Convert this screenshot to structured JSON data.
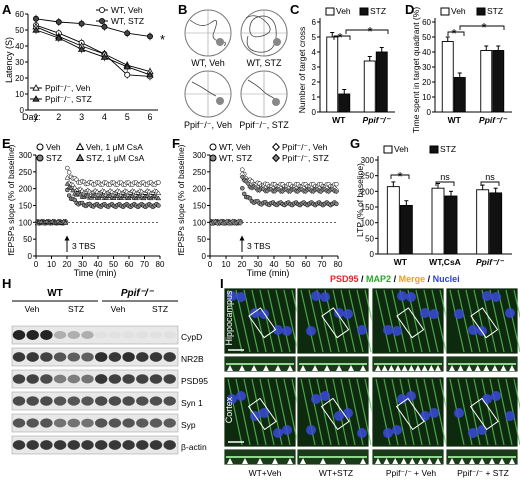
{
  "panels": {
    "A": {
      "letter": "A",
      "ylabel": "Latency (S)",
      "xlabel": "Day:",
      "legend": [
        "WT, Veh",
        "WT, STZ",
        "Ppif⁻/⁻, Veh",
        "Ppif⁻/⁻, STZ"
      ],
      "sig": "*"
    },
    "B": {
      "letter": "B",
      "labels": [
        "WT, Veh",
        "WT, STZ",
        "Ppif⁻/⁻, Veh",
        "Ppif⁻/⁻, STZ"
      ]
    },
    "C": {
      "letter": "C",
      "ylabel": "Number of target cross",
      "legend": [
        "Veh",
        "STZ"
      ],
      "xcats": [
        "WT",
        "Ppif⁻/⁻"
      ],
      "sig": [
        "*",
        "*"
      ]
    },
    "D": {
      "letter": "D",
      "ylabel": "Time spent in target quadrant (%)",
      "legend": [
        "Veh",
        "STZ"
      ],
      "xcats": [
        "WT",
        "Ppif⁻/⁻"
      ],
      "sig": [
        "*",
        "*"
      ]
    },
    "E": {
      "letter": "E",
      "ylabel": "fEPSPs slope (% of baseline)",
      "xlabel": "Time (min)",
      "legend": [
        "Veh",
        "STZ",
        "Veh, 1 μM CsA",
        "STZ, 1 μM CsA"
      ],
      "arrow": "3 TBS"
    },
    "F": {
      "letter": "F",
      "ylabel": "fEPSPs slope (% of baseline)",
      "xlabel": "Time (min)",
      "legend": [
        "WT, Veh",
        "WT, STZ",
        "Ppif⁻/⁻, Veh",
        "Ppif⁻/⁻, STZ"
      ],
      "arrow": "3 TBS"
    },
    "G": {
      "letter": "G",
      "ylabel": "LTP (% of baseline)",
      "legend": [
        "Veh",
        "STZ"
      ],
      "xcats": [
        "WT",
        "WT,CsA",
        "Ppif⁻/⁻"
      ],
      "sig": [
        "*",
        "ns",
        "ns"
      ]
    },
    "H": {
      "letter": "H",
      "groups": [
        "WT",
        "Ppif⁻/⁻"
      ],
      "subgroups": [
        "Veh",
        "STZ",
        "Veh",
        "STZ"
      ],
      "proteins": [
        "CypD",
        "NR2B",
        "PSD95",
        "Syn 1",
        "Syp",
        "β-actin"
      ]
    },
    "I": {
      "letter": "I",
      "title_parts": [
        {
          "text": "PSD95",
          "color": "#e8232a"
        },
        {
          "text": " / ",
          "color": "#000000"
        },
        {
          "text": "MAP2",
          "color": "#2aa52a"
        },
        {
          "text": " / ",
          "color": "#000000"
        },
        {
          "text": "Merge",
          "color": "#e8a21a"
        },
        {
          "text": " / ",
          "color": "#000000"
        },
        {
          "text": "Nuclei",
          "color": "#2a3fd8"
        }
      ],
      "rows": [
        "Hippocampus",
        "Cortex"
      ],
      "cols": [
        "WT+Veh",
        "WT+STZ",
        "Ppif⁻/⁻ + Veh",
        "Ppif⁻/⁻ + STZ"
      ]
    }
  },
  "chart_data": [
    {
      "panel": "A",
      "type": "line",
      "xlabel": "Day:",
      "ylabel": "Latency (S)",
      "ylim": [
        0,
        60
      ],
      "x": [
        1,
        2,
        3,
        4,
        5,
        6
      ],
      "series": [
        {
          "name": "WT, Veh",
          "values": [
            53,
            48,
            42,
            35,
            22,
            21
          ]
        },
        {
          "name": "WT, STZ",
          "values": [
            57,
            55,
            54,
            52,
            48,
            46
          ]
        },
        {
          "name": "Ppif-/-, Veh",
          "values": [
            52,
            46,
            40,
            35,
            28,
            24
          ]
        },
        {
          "name": "Ppif-/-, STZ",
          "values": [
            50,
            45,
            38,
            33,
            27,
            22
          ]
        }
      ]
    },
    {
      "panel": "C",
      "type": "bar",
      "ylabel": "Number of target cross",
      "ylim": [
        0,
        6
      ],
      "categories": [
        "WT",
        "Ppif-/-"
      ],
      "series": [
        {
          "name": "Veh",
          "values": [
            5.0,
            3.4
          ]
        },
        {
          "name": "STZ",
          "values": [
            1.2,
            4.0
          ]
        }
      ]
    },
    {
      "panel": "D",
      "type": "bar",
      "ylabel": "Time spent in target quadrant (%)",
      "ylim": [
        0,
        60
      ],
      "categories": [
        "WT",
        "Ppif-/-"
      ],
      "series": [
        {
          "name": "Veh",
          "values": [
            47,
            41
          ]
        },
        {
          "name": "STZ",
          "values": [
            23,
            41
          ]
        }
      ]
    },
    {
      "panel": "E",
      "type": "scatter",
      "xlabel": "Time (min)",
      "ylabel": "fEPSPs slope (% of baseline)",
      "xlim": [
        0,
        80
      ],
      "ylim": [
        0,
        300
      ],
      "series": [
        {
          "name": "Veh",
          "baseline": 100,
          "post": 215
        },
        {
          "name": "STZ",
          "baseline": 100,
          "post": 150
        },
        {
          "name": "Veh, 1 μM CsA",
          "baseline": 100,
          "post": 190
        },
        {
          "name": "STZ, 1 μM CsA",
          "baseline": 100,
          "post": 175
        }
      ]
    },
    {
      "panel": "F",
      "type": "scatter",
      "xlabel": "Time (min)",
      "ylabel": "fEPSPs slope (% of baseline)",
      "xlim": [
        0,
        80
      ],
      "ylim": [
        0,
        300
      ],
      "series": [
        {
          "name": "WT, Veh",
          "baseline": 100,
          "post": 210
        },
        {
          "name": "WT, STZ",
          "baseline": 100,
          "post": 155
        },
        {
          "name": "Ppif-/-, Veh",
          "baseline": 100,
          "post": 200
        },
        {
          "name": "Ppif-/-, STZ",
          "baseline": 100,
          "post": 195
        }
      ]
    },
    {
      "panel": "G",
      "type": "bar",
      "ylabel": "LTP (% of baseline)",
      "ylim": [
        0,
        300
      ],
      "categories": [
        "WT",
        "WT,CsA",
        "Ppif-/-"
      ],
      "series": [
        {
          "name": "Veh",
          "values": [
            215,
            210,
            205
          ]
        },
        {
          "name": "STZ",
          "values": [
            155,
            185,
            195
          ]
        }
      ]
    }
  ]
}
